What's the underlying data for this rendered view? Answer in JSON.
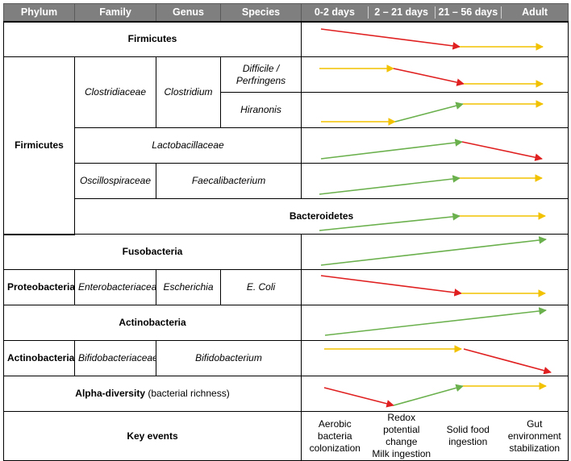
{
  "header": {
    "phylum": "Phylum",
    "family": "Family",
    "genus": "Genus",
    "species": "Species",
    "t1": "0-2 days",
    "t2": "2 – 21 days",
    "t3": "21 – 56 days",
    "t4": "Adult"
  },
  "rows": {
    "firmicutes": "Firmicutes",
    "firmicutes_phylum": "Firmicutes",
    "clostridiaceae": "Clostridiaceae",
    "clostridium": "Clostridium",
    "difficile": "Difficile / Perfringens",
    "hiranonis": "Hiranonis",
    "lactobacillaceae": "Lactobacillaceae",
    "oscillospiraceae": "Oscillospiraceae",
    "faecalibacterium": "Faecalibacterium",
    "bacteroidetes": "Bacteroidetes",
    "fusobacteria": "Fusobacteria",
    "proteobacteria": "Proteobacteria",
    "enterobacteriaceae": "Enterobacteriaceae",
    "escherichia": "Escherichia",
    "ecoli": "E. Coli",
    "actinobacteria": "Actinobacteria",
    "actinobacteria_phylum": "Actinobacteria",
    "bifidobacteriaceae": "Bifidobacteriaceae",
    "bifidobacterium": "Bifidobacterium",
    "alpha_bold": "Alpha-diversity",
    "alpha_rest": " (bacterial richness)",
    "key_events": "Key events"
  },
  "key_events": {
    "e1": "Aerobic bacteria colonization",
    "e2a": "Redox potential change",
    "e2b": "Milk ingestion",
    "e3": "Solid food ingestion",
    "e4": "Gut environment stabilization"
  },
  "colors": {
    "red": "#e02020",
    "yellow": "#f2c200",
    "green": "#6ab04c",
    "header": "#7f7f7f"
  }
}
